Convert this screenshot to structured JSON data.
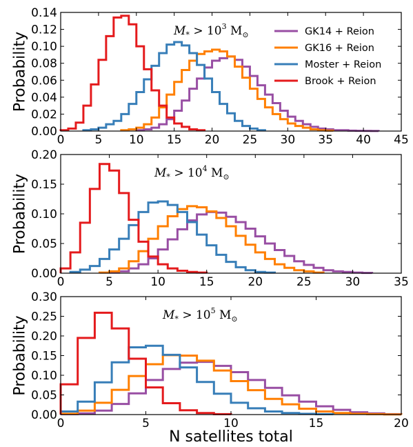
{
  "chart_data": [
    {
      "type": "line",
      "style": "step-histogram",
      "annotation": {
        "base": "M",
        "sub": "*",
        "rel": " > 10",
        "exp": "3",
        "unit": " M",
        "unit_sub": "⊙"
      },
      "ylabel": "Probability",
      "xlabel": "",
      "xlim": [
        0,
        45
      ],
      "ylim": [
        0,
        0.14
      ],
      "xticks": [
        "0",
        "5",
        "10",
        "15",
        "20",
        "25",
        "30",
        "35",
        "40",
        "45"
      ],
      "yticks": [
        "0.00",
        "0.02",
        "0.04",
        "0.06",
        "0.08",
        "0.10",
        "0.12",
        "0.14"
      ],
      "legend_position": "top-right",
      "series": [
        {
          "name": "GK14 + Reion",
          "color": "#984ea3",
          "x_start": 10,
          "bin_width": 1,
          "values": [
            0.001,
            0.002,
            0.004,
            0.008,
            0.014,
            0.024,
            0.036,
            0.05,
            0.062,
            0.075,
            0.083,
            0.086,
            0.088,
            0.084,
            0.076,
            0.065,
            0.054,
            0.043,
            0.033,
            0.024,
            0.017,
            0.012,
            0.008,
            0.005,
            0.003,
            0.002,
            0.001,
            0.001,
            0.0005,
            0.0003,
            0.0002,
            0.0001
          ]
        },
        {
          "name": "GK16 + Reion",
          "color": "#ff7f00",
          "x_start": 8,
          "bin_width": 1,
          "values": [
            0.001,
            0.002,
            0.004,
            0.008,
            0.016,
            0.028,
            0.043,
            0.058,
            0.072,
            0.083,
            0.091,
            0.094,
            0.096,
            0.094,
            0.088,
            0.076,
            0.063,
            0.05,
            0.038,
            0.028,
            0.02,
            0.014,
            0.009,
            0.006,
            0.004,
            0.002,
            0.001,
            0.0005
          ]
        },
        {
          "name": "Moster + Reion",
          "color": "#377eb8",
          "x_start": 3,
          "bin_width": 1,
          "values": [
            0.001,
            0.002,
            0.004,
            0.008,
            0.012,
            0.02,
            0.032,
            0.046,
            0.061,
            0.077,
            0.092,
            0.102,
            0.105,
            0.101,
            0.092,
            0.078,
            0.062,
            0.046,
            0.032,
            0.021,
            0.012,
            0.006,
            0.003,
            0.001
          ]
        },
        {
          "name": "Brook + Reion",
          "color": "#e41a1c",
          "x_start": 0,
          "bin_width": 1,
          "values": [
            0.001,
            0.003,
            0.01,
            0.03,
            0.055,
            0.084,
            0.112,
            0.134,
            0.136,
            0.126,
            0.1,
            0.073,
            0.048,
            0.03,
            0.016,
            0.009,
            0.005,
            0.002,
            0.001
          ]
        }
      ]
    },
    {
      "type": "line",
      "style": "step-histogram",
      "annotation": {
        "base": "M",
        "sub": "*",
        "rel": " > 10",
        "exp": "4",
        "unit": " M",
        "unit_sub": "⊙"
      },
      "ylabel": "Probability",
      "xlabel": "",
      "xlim": [
        0,
        35
      ],
      "ylim": [
        0,
        0.2
      ],
      "xticks": [
        "0",
        "5",
        "10",
        "15",
        "20",
        "25",
        "30",
        "35"
      ],
      "yticks": [
        "0.00",
        "0.05",
        "0.10",
        "0.15",
        "0.20"
      ],
      "series": [
        {
          "name": "GK14 + Reion",
          "color": "#984ea3",
          "x_start": 5,
          "bin_width": 1,
          "values": [
            0.001,
            0.003,
            0.008,
            0.015,
            0.025,
            0.04,
            0.057,
            0.074,
            0.089,
            0.099,
            0.103,
            0.102,
            0.095,
            0.086,
            0.075,
            0.062,
            0.05,
            0.039,
            0.029,
            0.02,
            0.014,
            0.009,
            0.005,
            0.003,
            0.002,
            0.001,
            0.0005
          ]
        },
        {
          "name": "GK16 + Reion",
          "color": "#ff7f00",
          "x_start": 4,
          "bin_width": 1,
          "values": [
            0.001,
            0.003,
            0.008,
            0.02,
            0.037,
            0.058,
            0.079,
            0.096,
            0.108,
            0.113,
            0.111,
            0.104,
            0.093,
            0.079,
            0.063,
            0.048,
            0.035,
            0.024,
            0.015,
            0.009,
            0.005,
            0.003,
            0.001
          ]
        },
        {
          "name": "Moster + Reion",
          "color": "#377eb8",
          "x_start": 1,
          "bin_width": 1,
          "values": [
            0.002,
            0.006,
            0.012,
            0.024,
            0.04,
            0.058,
            0.081,
            0.103,
            0.119,
            0.121,
            0.115,
            0.103,
            0.086,
            0.065,
            0.047,
            0.031,
            0.019,
            0.01,
            0.005,
            0.002,
            0.001
          ]
        },
        {
          "name": "Brook + Reion",
          "color": "#e41a1c",
          "x_start": 0,
          "bin_width": 1,
          "values": [
            0.008,
            0.035,
            0.085,
            0.142,
            0.184,
            0.173,
            0.135,
            0.09,
            0.053,
            0.028,
            0.015,
            0.008,
            0.004,
            0.002,
            0.001
          ]
        }
      ]
    },
    {
      "type": "line",
      "style": "step-histogram",
      "annotation": {
        "base": "M",
        "sub": "*",
        "rel": " > 10",
        "exp": "5",
        "unit": " M",
        "unit_sub": "⊙"
      },
      "ylabel": "Probability",
      "xlabel": "N satellites total",
      "xlim": [
        0,
        20
      ],
      "ylim": [
        0,
        0.3
      ],
      "xticks": [
        "0",
        "5",
        "10",
        "15",
        "20"
      ],
      "yticks": [
        "0.00",
        "0.05",
        "0.10",
        "0.15",
        "0.20",
        "0.25",
        "0.30"
      ],
      "series": [
        {
          "name": "GK14 + Reion",
          "color": "#984ea3",
          "x_start": 0,
          "bin_width": 1,
          "values": [
            0.001,
            0.003,
            0.01,
            0.027,
            0.054,
            0.088,
            0.116,
            0.132,
            0.134,
            0.124,
            0.108,
            0.088,
            0.068,
            0.049,
            0.033,
            0.021,
            0.012,
            0.006,
            0.003,
            0.001
          ]
        },
        {
          "name": "GK16 + Reion",
          "color": "#ff7f00",
          "x_start": 0,
          "bin_width": 1,
          "values": [
            0.002,
            0.01,
            0.03,
            0.063,
            0.098,
            0.128,
            0.151,
            0.15,
            0.137,
            0.112,
            0.085,
            0.062,
            0.04,
            0.026,
            0.015,
            0.008,
            0.004,
            0.002,
            0.001,
            0.0005
          ]
        },
        {
          "name": "Moster + Reion",
          "color": "#377eb8",
          "x_start": 0,
          "bin_width": 1,
          "values": [
            0.008,
            0.033,
            0.082,
            0.133,
            0.171,
            0.175,
            0.152,
            0.12,
            0.083,
            0.053,
            0.03,
            0.016,
            0.008,
            0.004,
            0.002,
            0.001
          ]
        },
        {
          "name": "Brook + Reion",
          "color": "#e41a1c",
          "x_start": 0,
          "bin_width": 1,
          "values": [
            0.077,
            0.195,
            0.259,
            0.219,
            0.142,
            0.069,
            0.029,
            0.011,
            0.004,
            0.001
          ]
        }
      ]
    }
  ]
}
